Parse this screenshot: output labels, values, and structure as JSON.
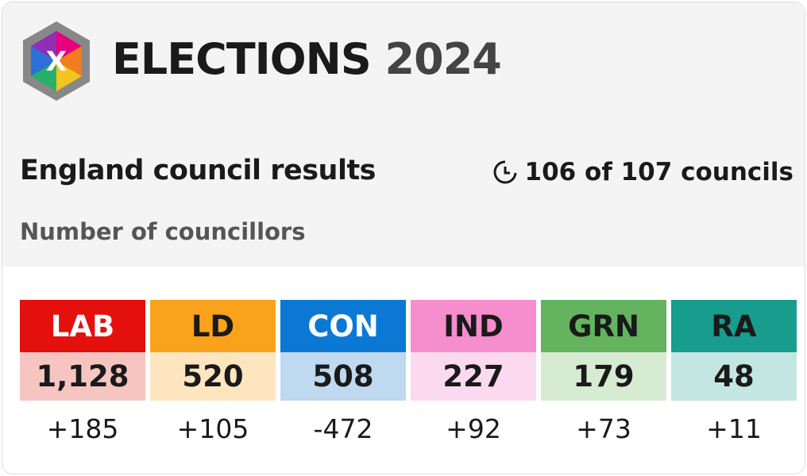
{
  "header": {
    "title": "ELECTIONS",
    "year": "2024"
  },
  "subtitle": "England council results",
  "progress": "106 of 107 councils",
  "measure": "Number of councillors",
  "parties": [
    {
      "name": "LAB",
      "seats": "1,128",
      "change": "+185",
      "color": "#e4100e",
      "light": "#f6c5c1",
      "text": "#ffffff"
    },
    {
      "name": "LD",
      "seats": "520",
      "change": "+105",
      "color": "#fba21c",
      "light": "#fde5c0",
      "text": "#1a1a1a"
    },
    {
      "name": "CON",
      "seats": "508",
      "change": "-472",
      "color": "#0b79d4",
      "light": "#bed9f0",
      "text": "#ffffff"
    },
    {
      "name": "IND",
      "seats": "227",
      "change": "+92",
      "color": "#f68dcd",
      "light": "#fbdaf0",
      "text": "#1a1a1a"
    },
    {
      "name": "GRN",
      "seats": "179",
      "change": "+73",
      "color": "#63b35f",
      "light": "#d7ebd2",
      "text": "#1a1a1a"
    },
    {
      "name": "RA",
      "seats": "48",
      "change": "+11",
      "color": "#179c8d",
      "light": "#c3e6e3",
      "text": "#1a1a1a"
    }
  ]
}
